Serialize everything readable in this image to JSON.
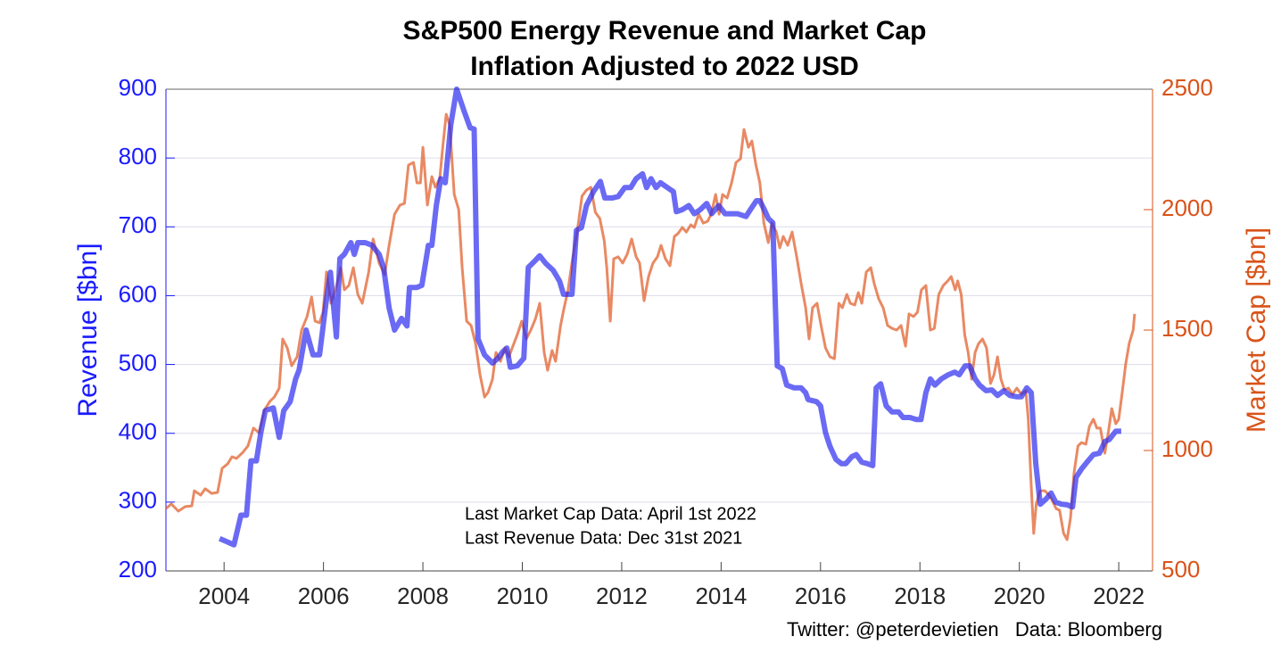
{
  "chart_data": {
    "type": "line",
    "title": "S&P500 Energy Revenue and Market Cap",
    "subtitle": "Inflation Adjusted to 2022 USD",
    "ylabel": "Revenue [$bn]",
    "y2label": "Market Cap [$bn]",
    "xlim": [
      2002.83,
      2022.68
    ],
    "xticks": [
      2004,
      2006,
      2008,
      2010,
      2012,
      2014,
      2016,
      2018,
      2020,
      2022
    ],
    "ylim": [
      200,
      900
    ],
    "yticks": [
      200,
      300,
      400,
      500,
      600,
      700,
      800,
      900
    ],
    "y2lim": [
      500,
      2500
    ],
    "y2ticks": [
      500,
      1000,
      1500,
      2000,
      2500
    ],
    "grid": true,
    "annotations": [
      "Last Market Cap Data: April 1st 2022",
      "Last Revenue Data: Dec 31st 2021"
    ],
    "source": "Twitter: @peterdevietien   Data: Bloomberg",
    "series": [
      {
        "color": "#2b2bf0",
        "axis": "y",
        "x": [
          2003.91,
          2004.2,
          2004.34,
          2004.45,
          2004.54,
          2004.65,
          2004.74,
          2004.83,
          2004.99,
          2005.11,
          2005.2,
          2005.33,
          2005.44,
          2005.51,
          2005.65,
          2005.79,
          2005.92,
          2006.05,
          2006.14,
          2006.26,
          2006.33,
          2006.42,
          2006.55,
          2006.62,
          2006.69,
          2006.84,
          2006.98,
          2007.12,
          2007.21,
          2007.32,
          2007.43,
          2007.57,
          2007.68,
          2007.73,
          2007.88,
          2007.98,
          2008.11,
          2008.18,
          2008.27,
          2008.36,
          2008.45,
          2008.56,
          2008.68,
          2008.83,
          2008.95,
          2009.03,
          2009.11,
          2009.24,
          2009.4,
          2009.51,
          2009.6,
          2009.69,
          2009.76,
          2009.9,
          2010.03,
          2010.12,
          2010.26,
          2010.35,
          2010.47,
          2010.62,
          2010.75,
          2010.83,
          2011.0,
          2011.09,
          2011.19,
          2011.29,
          2011.43,
          2011.57,
          2011.66,
          2011.81,
          2011.93,
          2012.06,
          2012.18,
          2012.29,
          2012.42,
          2012.5,
          2012.59,
          2012.69,
          2012.78,
          2012.92,
          2013.04,
          2013.1,
          2013.22,
          2013.35,
          2013.46,
          2013.58,
          2013.71,
          2013.81,
          2013.95,
          2014.08,
          2014.21,
          2014.33,
          2014.5,
          2014.59,
          2014.71,
          2014.78,
          2014.87,
          2014.95,
          2015.04,
          2015.13,
          2015.23,
          2015.32,
          2015.47,
          2015.61,
          2015.7,
          2015.75,
          2015.92,
          2016.0,
          2016.1,
          2016.19,
          2016.31,
          2016.42,
          2016.51,
          2016.63,
          2016.72,
          2016.83,
          2016.94,
          2017.05,
          2017.12,
          2017.21,
          2017.32,
          2017.44,
          2017.57,
          2017.66,
          2017.8,
          2017.93,
          2018.02,
          2018.12,
          2018.21,
          2018.3,
          2018.43,
          2018.57,
          2018.7,
          2018.79,
          2018.91,
          2019.0,
          2019.11,
          2019.2,
          2019.33,
          2019.45,
          2019.56,
          2019.69,
          2019.81,
          2019.95,
          2020.04,
          2020.15,
          2020.24,
          2020.33,
          2020.42,
          2020.53,
          2020.64,
          2020.73,
          2020.85,
          2020.96,
          2021.07,
          2021.14,
          2021.25,
          2021.36,
          2021.49,
          2021.61,
          2021.72,
          2021.81,
          2021.94,
          2022.05
        ],
        "values": [
          247,
          238,
          281,
          281,
          360,
          360,
          401,
          433,
          437,
          394,
          433,
          446,
          479,
          492,
          550,
          514,
          514,
          589,
          634,
          540,
          654,
          660,
          677,
          660,
          677,
          677,
          673,
          660,
          641,
          582,
          550,
          567,
          556,
          612,
          612,
          615,
          673,
          673,
          731,
          770,
          764,
          848,
          900,
          868,
          844,
          842,
          537,
          514,
          502,
          509,
          518,
          524,
          496,
          498,
          509,
          641,
          651,
          658,
          647,
          637,
          621,
          602,
          602,
          695,
          699,
          731,
          751,
          766,
          742,
          742,
          744,
          757,
          757,
          770,
          777,
          757,
          770,
          757,
          764,
          757,
          751,
          722,
          725,
          731,
          719,
          725,
          734,
          719,
          731,
          719,
          719,
          719,
          715,
          725,
          738,
          738,
          725,
          712,
          706,
          498,
          494,
          470,
          466,
          466,
          459,
          449,
          446,
          440,
          401,
          381,
          362,
          356,
          356,
          366,
          369,
          358,
          356,
          353,
          466,
          472,
          440,
          431,
          431,
          423,
          423,
          420,
          420,
          459,
          479,
          470,
          479,
          485,
          489,
          485,
          498,
          498,
          479,
          470,
          462,
          463,
          455,
          462,
          455,
          453,
          453,
          466,
          459,
          356,
          297,
          304,
          313,
          300,
          297,
          296,
          293,
          336,
          348,
          358,
          369,
          371,
          388,
          391,
          403,
          403
        ]
      },
      {
        "color": "#e2622f",
        "axis": "y2",
        "x": [
          2002.83,
          2002.94,
          2003.08,
          2003.22,
          2003.35,
          2003.4,
          2003.53,
          2003.62,
          2003.75,
          2003.87,
          2003.96,
          2004.07,
          2004.16,
          2004.25,
          2004.38,
          2004.48,
          2004.59,
          2004.7,
          2004.81,
          2004.92,
          2005.01,
          2005.11,
          2005.18,
          2005.27,
          2005.36,
          2005.47,
          2005.56,
          2005.67,
          2005.76,
          2005.83,
          2005.92,
          2005.99,
          2006.06,
          2006.15,
          2006.24,
          2006.35,
          2006.42,
          2006.51,
          2006.6,
          2006.69,
          2006.78,
          2006.91,
          2007.0,
          2007.12,
          2007.23,
          2007.32,
          2007.43,
          2007.54,
          2007.63,
          2007.71,
          2007.81,
          2007.88,
          2007.95,
          2008.0,
          2008.09,
          2008.18,
          2008.25,
          2008.34,
          2008.4,
          2008.47,
          2008.54,
          2008.63,
          2008.72,
          2008.79,
          2008.88,
          2008.97,
          2009.06,
          2009.15,
          2009.24,
          2009.31,
          2009.4,
          2009.47,
          2009.56,
          2009.65,
          2009.73,
          2009.81,
          2009.9,
          2009.99,
          2010.08,
          2010.17,
          2010.26,
          2010.35,
          2010.44,
          2010.51,
          2010.6,
          2010.67,
          2010.77,
          2010.83,
          2010.92,
          2011.01,
          2011.11,
          2011.2,
          2011.29,
          2011.38,
          2011.47,
          2011.56,
          2011.65,
          2011.7,
          2011.77,
          2011.84,
          2011.93,
          2012.02,
          2012.11,
          2012.2,
          2012.29,
          2012.36,
          2012.45,
          2012.54,
          2012.63,
          2012.72,
          2012.79,
          2012.88,
          2012.97,
          2013.06,
          2013.13,
          2013.22,
          2013.3,
          2013.39,
          2013.46,
          2013.55,
          2013.64,
          2013.73,
          2013.8,
          2013.89,
          2013.96,
          2014.03,
          2014.12,
          2014.21,
          2014.3,
          2014.39,
          2014.46,
          2014.55,
          2014.62,
          2014.7,
          2014.78,
          2014.86,
          2014.95,
          2015.02,
          2015.11,
          2015.18,
          2015.25,
          2015.34,
          2015.43,
          2015.52,
          2015.61,
          2015.7,
          2015.77,
          2015.84,
          2015.93,
          2016.01,
          2016.1,
          2016.19,
          2016.28,
          2016.37,
          2016.44,
          2016.53,
          2016.6,
          2016.69,
          2016.76,
          2016.83,
          2016.92,
          2017.01,
          2017.08,
          2017.17,
          2017.26,
          2017.35,
          2017.44,
          2017.53,
          2017.62,
          2017.71,
          2017.78,
          2017.87,
          2017.95,
          2018.03,
          2018.12,
          2018.21,
          2018.29,
          2018.38,
          2018.47,
          2018.56,
          2018.63,
          2018.71,
          2018.76,
          2018.83,
          2018.9,
          2018.97,
          2019.04,
          2019.11,
          2019.18,
          2019.26,
          2019.34,
          2019.42,
          2019.49,
          2019.56,
          2019.63,
          2019.7,
          2019.78,
          2019.86,
          2019.95,
          2020.04,
          2020.13,
          2020.18,
          2020.24,
          2020.29,
          2020.34,
          2020.42,
          2020.51,
          2020.6,
          2020.67,
          2020.74,
          2020.81,
          2020.89,
          2020.96,
          2021.03,
          2021.1,
          2021.18,
          2021.25,
          2021.34,
          2021.41,
          2021.49,
          2021.56,
          2021.63,
          2021.72,
          2021.79,
          2021.86,
          2021.94,
          2022.0,
          2022.07,
          2022.14,
          2022.21,
          2022.29,
          2022.32
        ],
        "values": [
          759,
          778,
          748,
          767,
          770,
          833,
          815,
          841,
          822,
          826,
          926,
          944,
          974,
          967,
          993,
          1019,
          1093,
          1074,
          1167,
          1204,
          1222,
          1259,
          1463,
          1426,
          1352,
          1389,
          1500,
          1556,
          1637,
          1537,
          1530,
          1574,
          1741,
          1611,
          1667,
          1759,
          1667,
          1685,
          1759,
          1648,
          1611,
          1741,
          1878,
          1778,
          1730,
          1852,
          1981,
          2019,
          2026,
          2185,
          2196,
          2111,
          2111,
          2259,
          2019,
          2137,
          2093,
          2130,
          2259,
          2396,
          2352,
          2063,
          2000,
          1759,
          1537,
          1519,
          1444,
          1315,
          1222,
          1241,
          1296,
          1407,
          1370,
          1426,
          1389,
          1433,
          1481,
          1537,
          1463,
          1500,
          1544,
          1611,
          1407,
          1333,
          1415,
          1370,
          1519,
          1581,
          1667,
          1796,
          1915,
          2056,
          2081,
          2093,
          1989,
          1963,
          1870,
          1759,
          1537,
          1796,
          1804,
          1778,
          1815,
          1878,
          1804,
          1778,
          1622,
          1722,
          1778,
          1804,
          1852,
          1796,
          1767,
          1889,
          1900,
          1926,
          1907,
          1937,
          1926,
          1981,
          1944,
          1952,
          1981,
          2063,
          1981,
          2063,
          2048,
          2111,
          2196,
          2211,
          2333,
          2259,
          2285,
          2185,
          2111,
          1944,
          1863,
          1944,
          1907,
          1841,
          1889,
          1852,
          1907,
          1804,
          1693,
          1593,
          1463,
          1593,
          1611,
          1519,
          1426,
          1389,
          1381,
          1611,
          1593,
          1648,
          1611,
          1604,
          1656,
          1611,
          1741,
          1759,
          1693,
          1630,
          1593,
          1519,
          1507,
          1500,
          1519,
          1433,
          1567,
          1556,
          1574,
          1667,
          1685,
          1500,
          1507,
          1648,
          1685,
          1704,
          1722,
          1667,
          1704,
          1648,
          1481,
          1407,
          1296,
          1407,
          1444,
          1463,
          1426,
          1278,
          1315,
          1389,
          1296,
          1252,
          1259,
          1233,
          1259,
          1233,
          1248,
          1130,
          852,
          656,
          778,
          833,
          833,
          815,
          789,
          759,
          752,
          656,
          630,
          722,
          907,
          1019,
          1033,
          1026,
          1100,
          1130,
          1093,
          1093,
          989,
          1074,
          1174,
          1111,
          1130,
          1241,
          1359,
          1444,
          1500,
          1567
        ]
      }
    ]
  }
}
